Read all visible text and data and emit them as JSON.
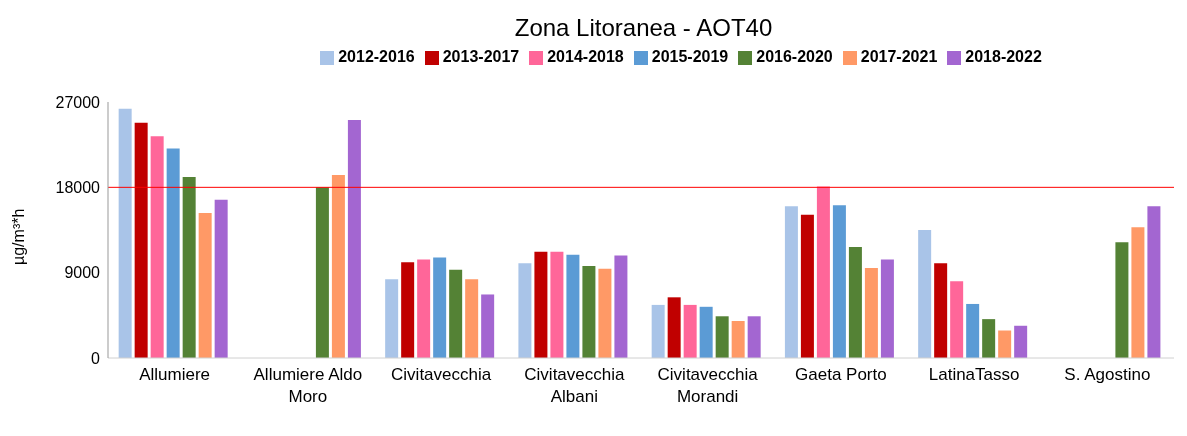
{
  "chart_data": {
    "type": "bar",
    "title": "Zona Litoranea - AOT40",
    "ylabel": "µg/m³*h",
    "categories": [
      "Allumiere",
      "Allumiere Aldo Moro",
      "Civitavecchia",
      "Civitavecchia Albani",
      "Civitavecchia Morandi",
      "Gaeta Porto",
      "LatinaTasso",
      "S. Agostino"
    ],
    "series": [
      {
        "name": "2012-2016",
        "color": "#a9c4e8",
        "values": [
          26300,
          null,
          8300,
          10000,
          5600,
          16000,
          13500,
          null
        ]
      },
      {
        "name": "2013-2017",
        "color": "#c00000",
        "values": [
          24800,
          null,
          10100,
          11200,
          6400,
          15100,
          10000,
          null
        ]
      },
      {
        "name": "2014-2018",
        "color": "#ff6699",
        "values": [
          23400,
          null,
          10400,
          11200,
          5600,
          18100,
          8100,
          null
        ]
      },
      {
        "name": "2015-2019",
        "color": "#5b9bd5",
        "values": [
          22100,
          null,
          10600,
          10900,
          5400,
          16100,
          5700,
          null
        ]
      },
      {
        "name": "2016-2020",
        "color": "#548235",
        "values": [
          19100,
          18000,
          9300,
          9700,
          4400,
          11700,
          4100,
          12200
        ]
      },
      {
        "name": "2017-2021",
        "color": "#ff9966",
        "values": [
          15300,
          19300,
          8300,
          9400,
          3900,
          9500,
          2900,
          13800
        ]
      },
      {
        "name": "2018-2022",
        "color": "#a366d1",
        "values": [
          16700,
          25100,
          6700,
          10800,
          4400,
          10400,
          3400,
          16000
        ]
      }
    ],
    "ylim": [
      0,
      27000
    ],
    "yticks": [
      0,
      9000,
      18000,
      27000
    ],
    "grid": false,
    "legend": "top",
    "ref_lines": [
      {
        "axis": "y",
        "value": 18000,
        "color": "#ff0000"
      }
    ]
  }
}
